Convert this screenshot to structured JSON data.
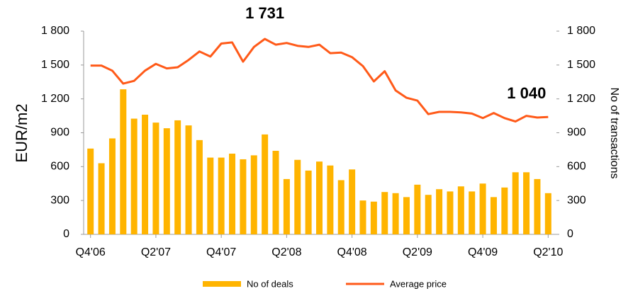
{
  "chart_data": {
    "type": "bar_line",
    "y_label": "EUR/m2",
    "y2_label": "No of transactions",
    "categories": [
      "Q4'06",
      null,
      null,
      null,
      null,
      null,
      "Q2'07",
      null,
      null,
      null,
      null,
      null,
      "Q4'07",
      null,
      null,
      null,
      null,
      null,
      "Q2'08",
      null,
      null,
      null,
      null,
      null,
      "Q4'08",
      null,
      null,
      null,
      null,
      null,
      "Q2'09",
      null,
      null,
      null,
      null,
      null,
      "Q4'09",
      null,
      null,
      null,
      null,
      null,
      "Q2'10"
    ],
    "ylim": [
      0,
      1800
    ],
    "yticks": [
      0,
      300,
      600,
      900,
      {
        "value": 1200,
        "label": "1 200"
      },
      {
        "value": 1500,
        "label": "1 500"
      },
      {
        "value": 1800,
        "label": "1 800"
      }
    ],
    "y2lim": [
      0,
      1800
    ],
    "y2ticks": [
      0,
      300,
      600,
      900,
      {
        "value": 1200,
        "label": "1 200"
      },
      {
        "value": 1500,
        "label": "1 500"
      },
      {
        "value": 1800,
        "label": "1 800"
      }
    ],
    "legend": "bottom",
    "series": [
      {
        "name": "No of deals",
        "kind": "bar",
        "axis": "y2",
        "color": "#FFB400",
        "values": [
          760,
          630,
          850,
          1285,
          1025,
          1060,
          990,
          940,
          1010,
          965,
          835,
          680,
          680,
          715,
          665,
          700,
          885,
          740,
          490,
          660,
          565,
          645,
          610,
          480,
          575,
          300,
          290,
          375,
          365,
          330,
          440,
          350,
          400,
          380,
          425,
          380,
          450,
          330,
          415,
          550,
          550,
          490,
          365
        ]
      },
      {
        "name": "Average price",
        "kind": "line",
        "color": "#FF5A19",
        "values": [
          1495,
          1495,
          1450,
          1335,
          1360,
          1450,
          1510,
          1470,
          1480,
          1545,
          1620,
          1575,
          1690,
          1700,
          1530,
          1660,
          1731,
          1680,
          1695,
          1670,
          1660,
          1680,
          1605,
          1610,
          1570,
          1490,
          1355,
          1445,
          1275,
          1210,
          1185,
          1065,
          1085,
          1085,
          1080,
          1070,
          1030,
          1075,
          1030,
          1000,
          1050,
          1035,
          1040
        ],
        "value_labels": [
          null,
          null,
          null,
          null,
          null,
          null,
          null,
          null,
          null,
          null,
          null,
          null,
          null,
          null,
          null,
          null,
          "1 731",
          null,
          null,
          null,
          null,
          null,
          null,
          null,
          null,
          null,
          null,
          null,
          null,
          null,
          null,
          null,
          null,
          null,
          null,
          null,
          null,
          null,
          null,
          null,
          null,
          null,
          "1 040"
        ]
      }
    ]
  }
}
